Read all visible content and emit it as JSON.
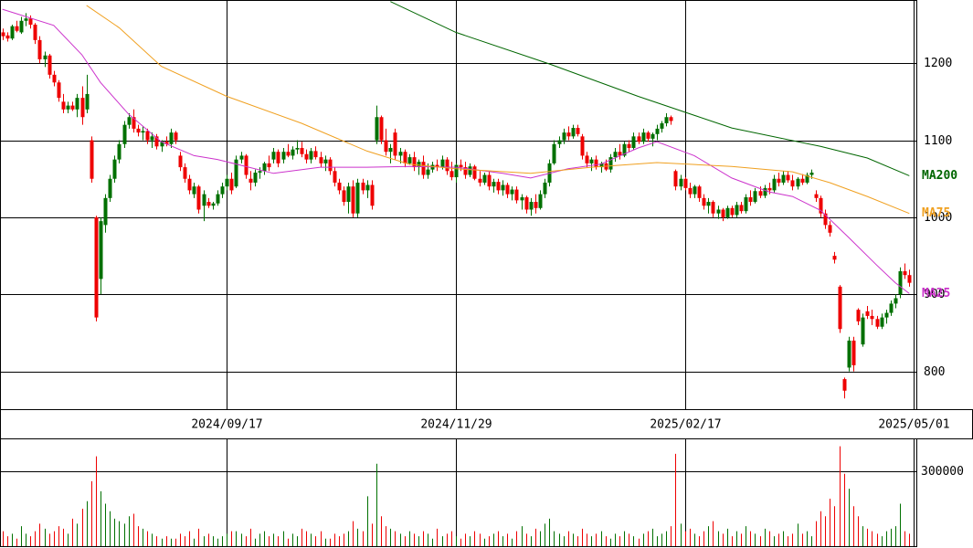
{
  "chart_data": {
    "type": "candlestick",
    "up_color": "#007000",
    "down_color": "#ee0000",
    "grid": true,
    "xlim": [
      -0.5,
      195.5
    ],
    "xticks": [
      {
        "value": 48,
        "label": "2024/09/17"
      },
      {
        "value": 97,
        "label": "2024/11/29"
      },
      {
        "value": 146,
        "label": "2025/02/17"
      },
      {
        "value": 195,
        "label": "2025/05/01"
      }
    ],
    "ylim": [
      751,
      1282
    ],
    "yticks": [
      800,
      900,
      1000,
      1100,
      1200
    ],
    "candles": [
      [
        1240,
        1245,
        1230,
        1235
      ],
      [
        1236,
        1240,
        1228,
        1232
      ],
      [
        1232,
        1250,
        1230,
        1248
      ],
      [
        1248,
        1255,
        1240,
        1242
      ],
      [
        1240,
        1260,
        1238,
        1255
      ],
      [
        1255,
        1265,
        1248,
        1258
      ],
      [
        1258,
        1262,
        1245,
        1250
      ],
      [
        1250,
        1252,
        1225,
        1230
      ],
      [
        1230,
        1235,
        1200,
        1205
      ],
      [
        1205,
        1215,
        1195,
        1210
      ],
      [
        1210,
        1212,
        1180,
        1185
      ],
      [
        1185,
        1190,
        1170,
        1175
      ],
      [
        1175,
        1178,
        1150,
        1155
      ],
      [
        1150,
        1160,
        1135,
        1140
      ],
      [
        1140,
        1150,
        1135,
        1145
      ],
      [
        1145,
        1150,
        1138,
        1140
      ],
      [
        1140,
        1160,
        1130,
        1155
      ],
      [
        1155,
        1170,
        1120,
        1130
      ],
      [
        1140,
        1185,
        1135,
        1160
      ],
      [
        1100,
        1105,
        1045,
        1050
      ],
      [
        1000,
        1002,
        865,
        870
      ],
      [
        920,
        1000,
        900,
        995
      ],
      [
        990,
        1030,
        980,
        1025
      ],
      [
        1025,
        1055,
        1020,
        1050
      ],
      [
        1050,
        1080,
        1045,
        1075
      ],
      [
        1075,
        1100,
        1070,
        1095
      ],
      [
        1095,
        1125,
        1090,
        1120
      ],
      [
        1120,
        1135,
        1115,
        1130
      ],
      [
        1130,
        1140,
        1110,
        1115
      ],
      [
        1115,
        1120,
        1105,
        1110
      ],
      [
        1110,
        1118,
        1100,
        1112
      ],
      [
        1112,
        1115,
        1095,
        1100
      ],
      [
        1100,
        1110,
        1090,
        1105
      ],
      [
        1105,
        1108,
        1088,
        1092
      ],
      [
        1092,
        1100,
        1085,
        1098
      ],
      [
        1098,
        1105,
        1092,
        1095
      ],
      [
        1095,
        1115,
        1090,
        1110
      ],
      [
        1110,
        1112,
        1095,
        1100
      ],
      [
        1080,
        1085,
        1060,
        1065
      ],
      [
        1065,
        1070,
        1045,
        1050
      ],
      [
        1050,
        1055,
        1030,
        1035
      ],
      [
        1030,
        1045,
        1025,
        1040
      ],
      [
        1040,
        1042,
        1005,
        1010
      ],
      [
        1015,
        1035,
        995,
        1030
      ],
      [
        1020,
        1025,
        1012,
        1015
      ],
      [
        1015,
        1020,
        1010,
        1018
      ],
      [
        1018,
        1035,
        1015,
        1030
      ],
      [
        1030,
        1045,
        1025,
        1040
      ],
      [
        1040,
        1055,
        1035,
        1050
      ],
      [
        1050,
        1058,
        1030,
        1035
      ],
      [
        1040,
        1080,
        1038,
        1075
      ],
      [
        1075,
        1085,
        1070,
        1080
      ],
      [
        1080,
        1082,
        1050,
        1055
      ],
      [
        1050,
        1060,
        1035,
        1045
      ],
      [
        1045,
        1062,
        1040,
        1058
      ],
      [
        1058,
        1065,
        1050,
        1060
      ],
      [
        1060,
        1072,
        1055,
        1070
      ],
      [
        1070,
        1080,
        1060,
        1065
      ],
      [
        1075,
        1090,
        1070,
        1085
      ],
      [
        1085,
        1088,
        1065,
        1070
      ],
      [
        1075,
        1090,
        1070,
        1085
      ],
      [
        1085,
        1095,
        1078,
        1080
      ],
      [
        1080,
        1092,
        1075,
        1088
      ],
      [
        1088,
        1100,
        1082,
        1090
      ],
      [
        1090,
        1098,
        1078,
        1082
      ],
      [
        1082,
        1088,
        1070,
        1075
      ],
      [
        1075,
        1090,
        1070,
        1086
      ],
      [
        1086,
        1092,
        1075,
        1078
      ],
      [
        1078,
        1085,
        1065,
        1070
      ],
      [
        1070,
        1080,
        1060,
        1075
      ],
      [
        1075,
        1078,
        1055,
        1060
      ],
      [
        1060,
        1065,
        1040,
        1045
      ],
      [
        1045,
        1050,
        1030,
        1035
      ],
      [
        1035,
        1040,
        1015,
        1020
      ],
      [
        1020,
        1045,
        1005,
        1040
      ],
      [
        1040,
        1048,
        1000,
        1005
      ],
      [
        1005,
        1050,
        1000,
        1045
      ],
      [
        1045,
        1050,
        1030,
        1035
      ],
      [
        1035,
        1048,
        1025,
        1042
      ],
      [
        1042,
        1048,
        1010,
        1015
      ],
      [
        1100,
        1145,
        1095,
        1130
      ],
      [
        1130,
        1132,
        1095,
        1100
      ],
      [
        1100,
        1115,
        1080,
        1085
      ],
      [
        1085,
        1095,
        1070,
        1090
      ],
      [
        1110,
        1115,
        1075,
        1080
      ],
      [
        1080,
        1090,
        1070,
        1085
      ],
      [
        1085,
        1088,
        1065,
        1070
      ],
      [
        1070,
        1082,
        1068,
        1078
      ],
      [
        1078,
        1085,
        1060,
        1065
      ],
      [
        1065,
        1075,
        1055,
        1072
      ],
      [
        1072,
        1080,
        1050,
        1055
      ],
      [
        1055,
        1070,
        1050,
        1062
      ],
      [
        1062,
        1072,
        1058,
        1068
      ],
      [
        1068,
        1075,
        1060,
        1065
      ],
      [
        1065,
        1080,
        1062,
        1075
      ],
      [
        1075,
        1078,
        1055,
        1060
      ],
      [
        1060,
        1072,
        1048,
        1052
      ],
      [
        1052,
        1070,
        1045,
        1068
      ],
      [
        1068,
        1075,
        1060,
        1065
      ],
      [
        1065,
        1072,
        1050,
        1055
      ],
      [
        1055,
        1070,
        1052,
        1066
      ],
      [
        1066,
        1068,
        1048,
        1050
      ],
      [
        1050,
        1060,
        1040,
        1045
      ],
      [
        1045,
        1058,
        1042,
        1055
      ],
      [
        1055,
        1060,
        1035,
        1040
      ],
      [
        1040,
        1050,
        1032,
        1046
      ],
      [
        1046,
        1050,
        1030,
        1035
      ],
      [
        1035,
        1048,
        1028,
        1042
      ],
      [
        1042,
        1045,
        1025,
        1030
      ],
      [
        1030,
        1040,
        1022,
        1036
      ],
      [
        1036,
        1040,
        1018,
        1022
      ],
      [
        1022,
        1030,
        1010,
        1026
      ],
      [
        1026,
        1028,
        1005,
        1010
      ],
      [
        1010,
        1025,
        1002,
        1020
      ],
      [
        1020,
        1030,
        1005,
        1012
      ],
      [
        1012,
        1035,
        1010,
        1030
      ],
      [
        1030,
        1050,
        1025,
        1045
      ],
      [
        1045,
        1075,
        1040,
        1070
      ],
      [
        1070,
        1100,
        1068,
        1095
      ],
      [
        1095,
        1105,
        1090,
        1100
      ],
      [
        1100,
        1115,
        1095,
        1110
      ],
      [
        1110,
        1118,
        1100,
        1105
      ],
      [
        1105,
        1120,
        1102,
        1116
      ],
      [
        1116,
        1120,
        1105,
        1108
      ],
      [
        1105,
        1108,
        1075,
        1080
      ],
      [
        1080,
        1085,
        1065,
        1070
      ],
      [
        1070,
        1078,
        1060,
        1075
      ],
      [
        1075,
        1080,
        1062,
        1065
      ],
      [
        1065,
        1072,
        1058,
        1070
      ],
      [
        1070,
        1075,
        1060,
        1062
      ],
      [
        1062,
        1082,
        1058,
        1078
      ],
      [
        1078,
        1090,
        1072,
        1085
      ],
      [
        1085,
        1095,
        1075,
        1080
      ],
      [
        1080,
        1098,
        1078,
        1095
      ],
      [
        1095,
        1100,
        1085,
        1090
      ],
      [
        1090,
        1110,
        1088,
        1105
      ],
      [
        1105,
        1110,
        1095,
        1098
      ],
      [
        1098,
        1115,
        1095,
        1110
      ],
      [
        1110,
        1112,
        1098,
        1102
      ],
      [
        1102,
        1110,
        1092,
        1108
      ],
      [
        1108,
        1120,
        1100,
        1115
      ],
      [
        1115,
        1125,
        1110,
        1122
      ],
      [
        1122,
        1135,
        1118,
        1130
      ],
      [
        1130,
        1132,
        1120,
        1125
      ],
      [
        1060,
        1062,
        1035,
        1040
      ],
      [
        1040,
        1055,
        1035,
        1050
      ],
      [
        1050,
        1052,
        1035,
        1038
      ],
      [
        1038,
        1045,
        1025,
        1030
      ],
      [
        1030,
        1042,
        1025,
        1040
      ],
      [
        1040,
        1042,
        1020,
        1025
      ],
      [
        1025,
        1030,
        1010,
        1015
      ],
      [
        1015,
        1025,
        1005,
        1020
      ],
      [
        1020,
        1022,
        1000,
        1005
      ],
      [
        1005,
        1015,
        998,
        1010
      ],
      [
        1010,
        1012,
        995,
        1000
      ],
      [
        1000,
        1015,
        998,
        1012
      ],
      [
        1012,
        1015,
        1000,
        1003
      ],
      [
        1003,
        1020,
        1000,
        1016
      ],
      [
        1016,
        1020,
        1005,
        1008
      ],
      [
        1008,
        1030,
        1005,
        1026
      ],
      [
        1026,
        1035,
        1015,
        1020
      ],
      [
        1020,
        1038,
        1018,
        1034
      ],
      [
        1034,
        1040,
        1025,
        1028
      ],
      [
        1028,
        1042,
        1025,
        1038
      ],
      [
        1038,
        1045,
        1030,
        1035
      ],
      [
        1035,
        1055,
        1032,
        1050
      ],
      [
        1050,
        1058,
        1040,
        1045
      ],
      [
        1045,
        1060,
        1042,
        1055
      ],
      [
        1055,
        1060,
        1045,
        1048
      ],
      [
        1048,
        1055,
        1035,
        1040
      ],
      [
        1040,
        1052,
        1036,
        1050
      ],
      [
        1050,
        1056,
        1042,
        1045
      ],
      [
        1045,
        1058,
        1043,
        1055
      ],
      [
        1055,
        1062,
        1050,
        1058
      ],
      [
        1030,
        1035,
        1020,
        1025
      ],
      [
        1025,
        1028,
        1000,
        1005
      ],
      [
        1005,
        1010,
        985,
        990
      ],
      [
        990,
        995,
        975,
        980
      ],
      [
        950,
        955,
        940,
        945
      ],
      [
        910,
        912,
        850,
        855
      ],
      [
        790,
        792,
        765,
        775
      ],
      [
        805,
        845,
        800,
        840
      ],
      [
        840,
        845,
        800,
        808
      ],
      [
        880,
        882,
        860,
        865
      ],
      [
        835,
        875,
        832,
        870
      ],
      [
        878,
        885,
        868,
        872
      ],
      [
        872,
        880,
        860,
        868
      ],
      [
        868,
        872,
        855,
        858
      ],
      [
        858,
        875,
        855,
        870
      ],
      [
        870,
        880,
        862,
        876
      ],
      [
        876,
        892,
        872,
        888
      ],
      [
        888,
        900,
        882,
        895
      ],
      [
        900,
        935,
        895,
        930
      ],
      [
        930,
        940,
        920,
        925
      ],
      [
        925,
        932,
        910,
        915
      ]
    ],
    "moving_averages": [
      {
        "name": "MA25",
        "color": "#cc33cc",
        "x": [
          0,
          11,
          17,
          21,
          27,
          34,
          41,
          46,
          58,
          68,
          78,
          87,
          97,
          107,
          113,
          121,
          128,
          136,
          140,
          148,
          156,
          164,
          169,
          175,
          181,
          187,
          191,
          194
        ],
        "values": [
          1270,
          1249,
          1211,
          1175,
          1134,
          1098,
          1080,
          1075,
          1057,
          1065,
          1065,
          1066,
          1065,
          1057,
          1051,
          1063,
          1069,
          1090,
          1098,
          1080,
          1051,
          1033,
          1027,
          1009,
          974,
          938,
          915,
          901
        ]
      },
      {
        "name": "MA75",
        "color": "#f0a020",
        "x": [
          18,
          25,
          34,
          48,
          64,
          78,
          87,
          97,
          113,
          126,
          140,
          156,
          169,
          177,
          185,
          194
        ],
        "values": [
          1275,
          1246,
          1196,
          1157,
          1122,
          1086,
          1069,
          1063,
          1057,
          1065,
          1071,
          1066,
          1059,
          1045,
          1027,
          1005
        ]
      },
      {
        "name": "MA200",
        "color": "#006600",
        "x": [
          83,
          97,
          117,
          136,
          156,
          175,
          185,
          194
        ],
        "values": [
          1280,
          1240,
          1199,
          1157,
          1116,
          1092,
          1077,
          1054
        ]
      }
    ],
    "volume": {
      "ylim": [
        0,
        428000
      ],
      "yticks": [
        300000
      ],
      "values": [
        60000,
        40000,
        50000,
        30000,
        80000,
        50000,
        40000,
        60000,
        90000,
        70000,
        50000,
        60000,
        80000,
        70000,
        50000,
        110000,
        90000,
        150000,
        180000,
        260000,
        360000,
        220000,
        170000,
        140000,
        110000,
        100000,
        90000,
        120000,
        130000,
        80000,
        70000,
        60000,
        50000,
        40000,
        30000,
        40000,
        30000,
        30000,
        50000,
        40000,
        60000,
        30000,
        70000,
        40000,
        50000,
        40000,
        30000,
        40000,
        50000,
        60000,
        60000,
        50000,
        40000,
        70000,
        30000,
        50000,
        60000,
        40000,
        50000,
        40000,
        60000,
        30000,
        50000,
        40000,
        70000,
        60000,
        50000,
        40000,
        60000,
        30000,
        30000,
        50000,
        40000,
        50000,
        60000,
        100000,
        70000,
        60000,
        200000,
        90000,
        330000,
        120000,
        80000,
        70000,
        60000,
        50000,
        40000,
        60000,
        50000,
        40000,
        60000,
        50000,
        30000,
        70000,
        40000,
        50000,
        60000,
        40000,
        30000,
        50000,
        40000,
        60000,
        50000,
        30000,
        40000,
        50000,
        60000,
        40000,
        50000,
        30000,
        60000,
        80000,
        50000,
        40000,
        70000,
        60000,
        90000,
        110000,
        60000,
        50000,
        40000,
        60000,
        50000,
        40000,
        70000,
        50000,
        40000,
        50000,
        60000,
        40000,
        30000,
        50000,
        40000,
        60000,
        50000,
        40000,
        30000,
        50000,
        60000,
        70000,
        40000,
        50000,
        60000,
        80000,
        370000,
        90000,
        60000,
        70000,
        50000,
        40000,
        60000,
        80000,
        100000,
        60000,
        50000,
        70000,
        40000,
        60000,
        50000,
        80000,
        60000,
        50000,
        40000,
        70000,
        60000,
        40000,
        50000,
        60000,
        40000,
        50000,
        90000,
        50000,
        60000,
        40000,
        100000,
        140000,
        120000,
        190000,
        160000,
        400000,
        290000,
        230000,
        160000,
        120000,
        80000,
        70000,
        60000,
        50000,
        40000,
        60000,
        70000,
        80000,
        170000,
        60000,
        50000
      ]
    }
  }
}
